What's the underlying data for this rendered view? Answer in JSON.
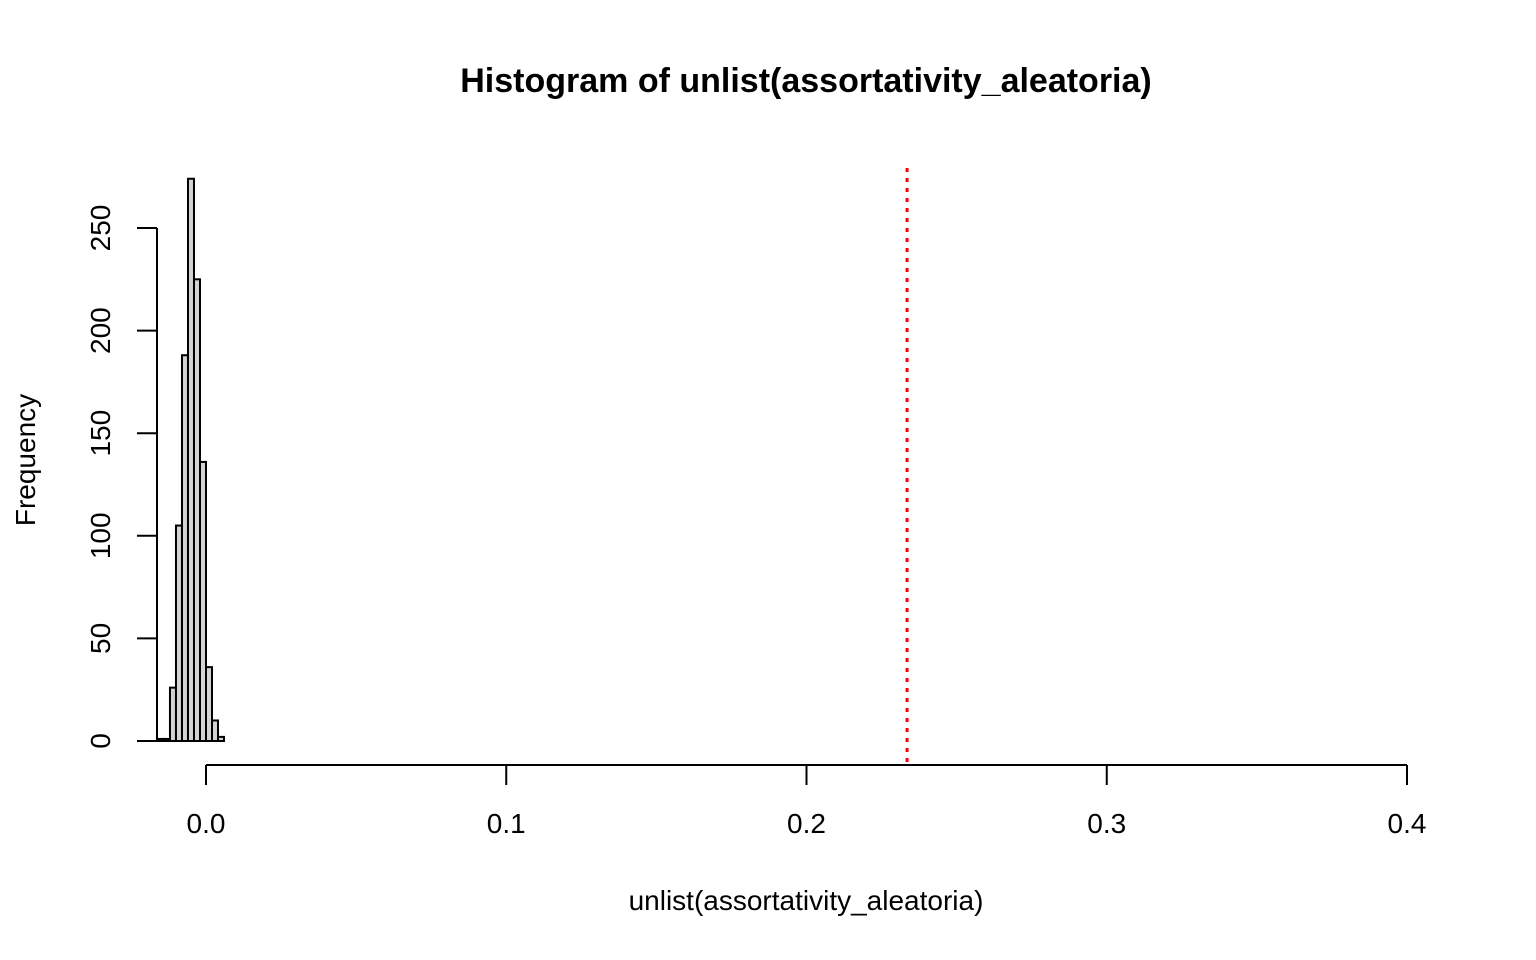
{
  "chart_data": {
    "type": "bar",
    "title": "Histogram of unlist(assortativity_aleatoria)",
    "xlabel": "unlist(assortativity_aleatoria)",
    "ylabel": "Frequency",
    "xlim": [
      0,
      0.4
    ],
    "ylim": [
      0,
      250
    ],
    "x_ticks": [
      "0.0",
      "0.1",
      "0.2",
      "0.3",
      "0.4"
    ],
    "x_tick_values": [
      0,
      0.1,
      0.2,
      0.3,
      0.4
    ],
    "y_ticks": [
      "0",
      "50",
      "100",
      "150",
      "200",
      "250"
    ],
    "y_tick_values": [
      0,
      50,
      100,
      150,
      200,
      250
    ],
    "bin_width": 0.002,
    "bins": [
      {
        "start": -0.016,
        "end": -0.014,
        "count": 1
      },
      {
        "start": -0.014,
        "end": -0.012,
        "count": 1
      },
      {
        "start": -0.012,
        "end": -0.01,
        "count": 26
      },
      {
        "start": -0.01,
        "end": -0.008,
        "count": 105
      },
      {
        "start": -0.008,
        "end": -0.006,
        "count": 188
      },
      {
        "start": -0.006,
        "end": -0.004,
        "count": 274
      },
      {
        "start": -0.004,
        "end": -0.002,
        "count": 225
      },
      {
        "start": -0.002,
        "end": 0.0,
        "count": 136
      },
      {
        "start": 0.0,
        "end": 0.002,
        "count": 36
      },
      {
        "start": 0.002,
        "end": 0.004,
        "count": 10
      },
      {
        "start": 0.004,
        "end": 0.006,
        "count": 2
      }
    ],
    "reference_line": {
      "x": 0.2335,
      "color": "#ff0000",
      "style": "dotted"
    },
    "grid": false,
    "bar_fill": "#d3d3d3"
  }
}
